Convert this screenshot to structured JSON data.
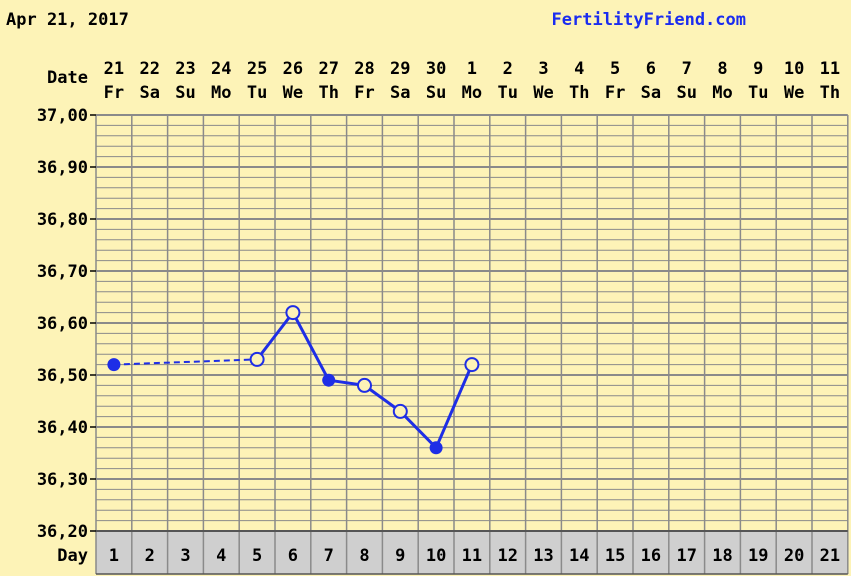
{
  "header": {
    "date": "Apr 21, 2017",
    "site": "FertilityFriend.com"
  },
  "colors": {
    "background": "#fdf3b7",
    "grid": "#8a8a8a",
    "series": "#1e2ee6",
    "link": "#1a2cf0",
    "day_row": "#cfcfcf"
  },
  "chart_data": {
    "type": "line",
    "date_row_label": "Date",
    "day_row_label": "Day",
    "dates": [
      "21",
      "22",
      "23",
      "24",
      "25",
      "26",
      "27",
      "28",
      "29",
      "30",
      "1",
      "2",
      "3",
      "4",
      "5",
      "6",
      "7",
      "8",
      "9",
      "10",
      "11"
    ],
    "weekdays": [
      "Fr",
      "Sa",
      "Su",
      "Mo",
      "Tu",
      "We",
      "Th",
      "Fr",
      "Sa",
      "Su",
      "Mo",
      "Tu",
      "We",
      "Th",
      "Fr",
      "Sa",
      "Su",
      "Mo",
      "Tu",
      "We",
      "Th"
    ],
    "days": [
      "1",
      "2",
      "3",
      "4",
      "5",
      "6",
      "7",
      "8",
      "9",
      "10",
      "11",
      "12",
      "13",
      "14",
      "15",
      "16",
      "17",
      "18",
      "19",
      "20",
      "21"
    ],
    "y_ticks": [
      "37,00",
      "36,90",
      "36,80",
      "36,70",
      "36,60",
      "36,50",
      "36,40",
      "36,30",
      "36,20"
    ],
    "ylim": [
      36.2,
      37.0
    ],
    "grid": true,
    "points": [
      {
        "day": 1,
        "temp": 36.52,
        "marker": "filled"
      },
      {
        "day": 5,
        "temp": 36.53,
        "marker": "open"
      },
      {
        "day": 6,
        "temp": 36.62,
        "marker": "open"
      },
      {
        "day": 7,
        "temp": 36.49,
        "marker": "filled"
      },
      {
        "day": 8,
        "temp": 36.48,
        "marker": "open"
      },
      {
        "day": 9,
        "temp": 36.43,
        "marker": "open"
      },
      {
        "day": 10,
        "temp": 36.36,
        "marker": "filled"
      },
      {
        "day": 11,
        "temp": 36.52,
        "marker": "open"
      }
    ],
    "dashed_segments": [
      [
        0,
        1
      ]
    ]
  }
}
